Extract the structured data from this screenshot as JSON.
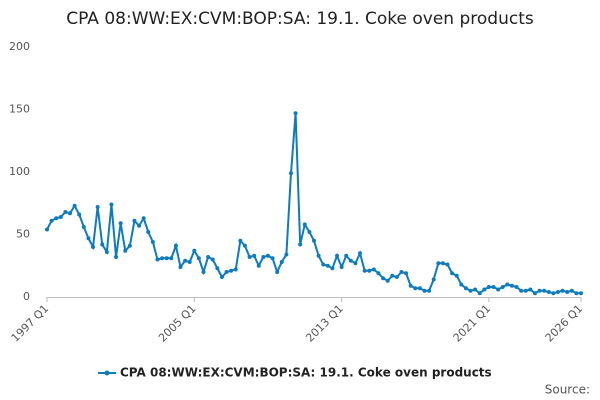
{
  "chart_data": {
    "type": "line",
    "title": "CPA 08:WW:EX:CVM:BOP:SA: 19.1. Coke oven products",
    "categories": [
      "1997 Q1",
      null,
      null,
      null,
      null,
      null,
      null,
      null,
      null,
      null,
      null,
      null,
      null,
      null,
      null,
      null,
      null,
      null,
      null,
      null,
      null,
      null,
      null,
      null,
      null,
      null,
      null,
      null,
      null,
      null,
      null,
      null,
      "2005 Q1",
      null,
      null,
      null,
      null,
      null,
      null,
      null,
      null,
      null,
      null,
      null,
      null,
      null,
      null,
      null,
      null,
      null,
      null,
      null,
      null,
      null,
      null,
      null,
      null,
      null,
      null,
      null,
      null,
      null,
      null,
      null,
      "2013 Q1",
      null,
      null,
      null,
      null,
      null,
      null,
      null,
      null,
      null,
      null,
      null,
      null,
      null,
      null,
      null,
      null,
      null,
      null,
      null,
      null,
      null,
      null,
      null,
      null,
      null,
      null,
      null,
      null,
      null,
      null,
      null,
      "2021 Q1",
      null,
      null,
      null,
      null,
      null,
      null,
      null,
      null,
      null,
      null,
      null,
      null,
      null,
      null,
      null,
      null,
      null,
      null,
      null,
      "2026 Q1"
    ],
    "series": [
      {
        "name": "CPA 08:WW:EX:CVM:BOP:SA: 19.1. Coke oven products",
        "color": "#0e7bbf",
        "values": [
          54,
          61,
          63,
          64,
          68,
          67,
          73,
          66,
          56,
          47,
          40,
          72,
          42,
          36,
          74,
          32,
          59,
          37,
          41,
          61,
          57,
          63,
          52,
          44,
          30,
          31,
          31,
          31,
          41,
          24,
          29,
          28,
          37,
          31,
          20,
          32,
          30,
          23,
          16,
          20,
          21,
          22,
          45,
          41,
          32,
          33,
          25,
          32,
          33,
          31,
          20,
          28,
          34,
          99,
          147,
          42,
          58,
          52,
          45,
          33,
          26,
          25,
          23,
          33,
          24,
          33,
          29,
          27,
          35,
          21,
          21,
          22,
          19,
          15,
          13,
          17,
          16,
          20,
          19,
          9,
          7,
          7,
          5,
          5,
          14,
          27,
          27,
          26,
          19,
          17,
          10,
          7,
          5,
          6,
          3,
          6,
          8,
          8,
          6,
          8,
          10,
          9,
          8,
          5,
          5,
          6,
          3,
          5,
          5,
          4,
          3,
          4,
          5,
          4,
          5,
          3,
          3
        ]
      }
    ],
    "ylim": [
      0,
      200
    ],
    "yticks": [
      0,
      50,
      100,
      150,
      200
    ],
    "grid": false,
    "legend": "bottom",
    "source": "Source:"
  }
}
